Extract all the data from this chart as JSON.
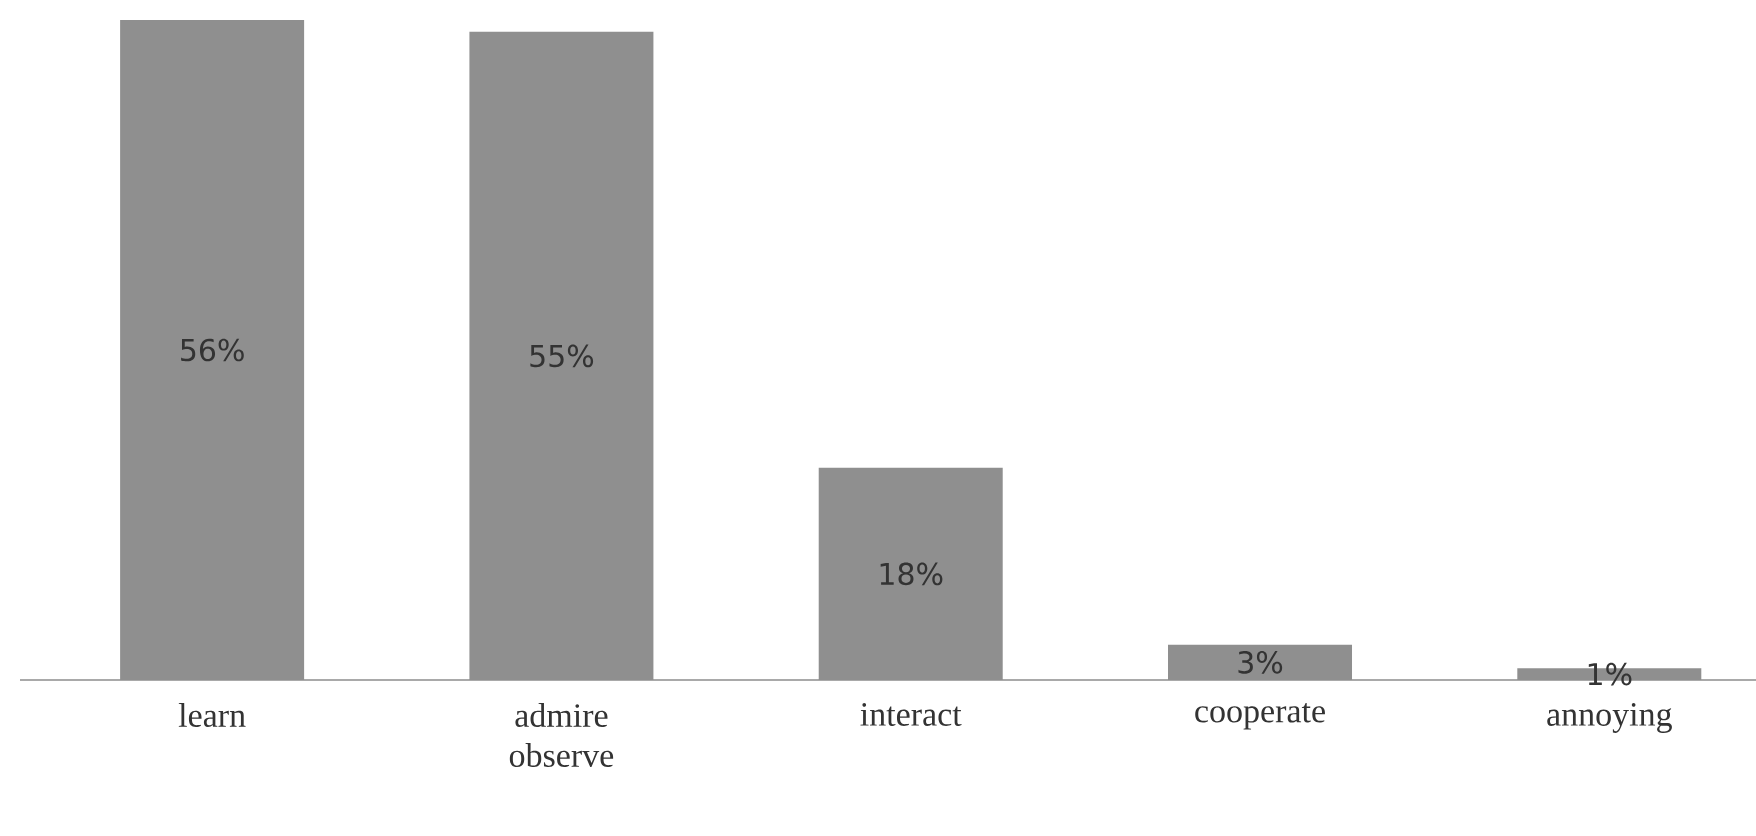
{
  "chart_data": {
    "type": "bar",
    "categories": [
      "learn",
      "admire observe",
      "interact",
      "cooperate",
      "annoying"
    ],
    "values": [
      56,
      55,
      18,
      3,
      1
    ],
    "value_labels": [
      "56%",
      "55%",
      "18%",
      "3%",
      "1%"
    ],
    "color": "#8f8f8f"
  }
}
